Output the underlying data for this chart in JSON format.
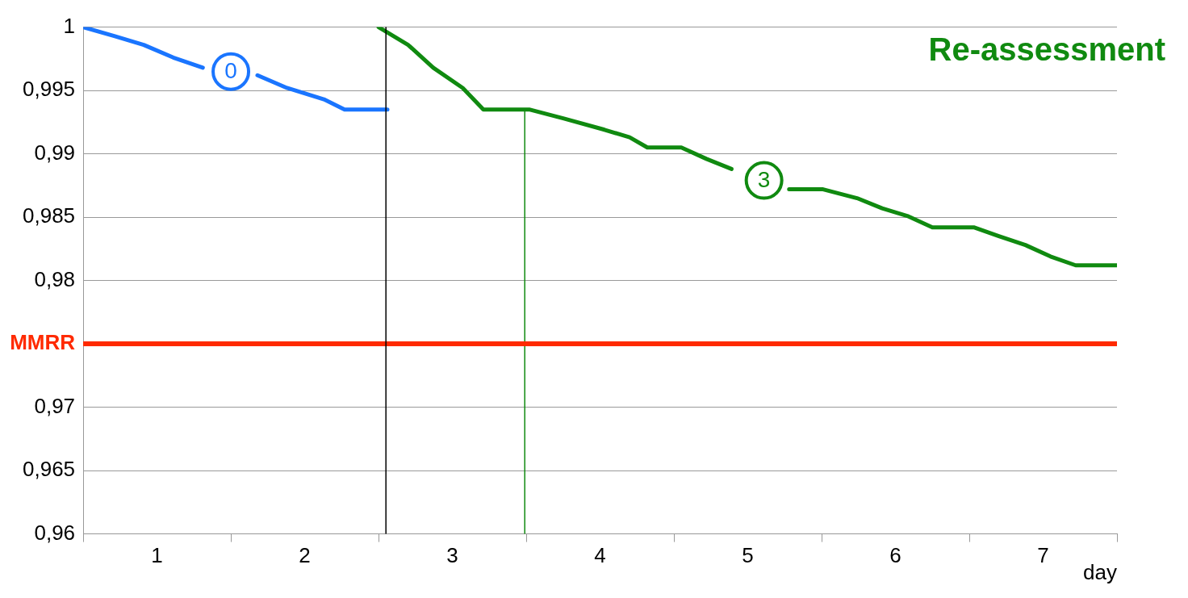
{
  "chart_data": {
    "type": "line",
    "xlabel": "day",
    "xlim": [
      0,
      7
    ],
    "xticks": [
      {
        "value": 0,
        "label": null
      },
      {
        "value": 0.5,
        "label": "1"
      },
      {
        "value": 1,
        "label": null
      },
      {
        "value": 1.5,
        "label": "2"
      },
      {
        "value": 2,
        "label": null
      },
      {
        "value": 2.5,
        "label": "3"
      },
      {
        "value": 3,
        "label": null
      },
      {
        "value": 3.5,
        "label": "4"
      },
      {
        "value": 4,
        "label": null
      },
      {
        "value": 4.5,
        "label": "5"
      },
      {
        "value": 5,
        "label": null
      },
      {
        "value": 5.5,
        "label": "6"
      },
      {
        "value": 6,
        "label": null
      },
      {
        "value": 6.5,
        "label": "7"
      },
      {
        "value": 7,
        "label": null
      }
    ],
    "ylim": [
      0.96,
      1
    ],
    "yticks": [
      {
        "value": 0.96,
        "label": "0,96"
      },
      {
        "value": 0.965,
        "label": "0,965"
      },
      {
        "value": 0.97,
        "label": "0,97"
      },
      {
        "value": 0.98,
        "label": "0,98"
      },
      {
        "value": 0.985,
        "label": "0,985"
      },
      {
        "value": 0.99,
        "label": "0,99"
      },
      {
        "value": 0.995,
        "label": "0,995"
      },
      1
    ],
    "grid": "y",
    "marker": "none",
    "line_style": "solid",
    "legend": false,
    "series": [
      {
        "color": "#1a75ff",
        "x": [
          0,
          0.21,
          0.41,
          0.61,
          0.81,
          1.0,
          1.18,
          1.38,
          1.63,
          1.77,
          2.06
        ],
        "values": [
          1,
          0.9993,
          0.9986,
          0.9976,
          0.9968,
          null,
          0.9962,
          0.9952,
          0.9943,
          0.9935,
          0.9935
        ]
      },
      {
        "color": "#108a10",
        "x": [
          2.0,
          2.2,
          2.37,
          2.57,
          2.71,
          3.02,
          3.25,
          3.53,
          3.7,
          3.82,
          4.05,
          4.22,
          4.39,
          4.61,
          4.78,
          5.01,
          5.24,
          5.41,
          5.58,
          5.75,
          6.03,
          6.2,
          6.38,
          6.55,
          6.72,
          7.0
        ],
        "values": [
          1,
          0.9986,
          0.9968,
          0.9952,
          0.9935,
          0.9935,
          0.9928,
          0.9919,
          0.9913,
          0.9905,
          0.9905,
          0.9896,
          0.9888,
          null,
          0.9872,
          0.9872,
          0.9865,
          0.9857,
          0.9851,
          0.9842,
          0.9842,
          0.9835,
          0.9828,
          0.9819,
          0.9812,
          0.9812
        ]
      },
      {
        "color": "#108a10",
        "x": [
          2.99,
          2.99
        ],
        "values": [
          0.9935,
          0.96
        ]
      }
    ],
    "ref_lines": [
      {
        "axis": "y",
        "value": 0.975,
        "label": "MMRR",
        "color": "#ff2a00"
      },
      {
        "axis": "x",
        "value": 2.05,
        "color": "#000000"
      }
    ],
    "annotations": [
      "0",
      "3",
      "Re-assessment"
    ]
  }
}
